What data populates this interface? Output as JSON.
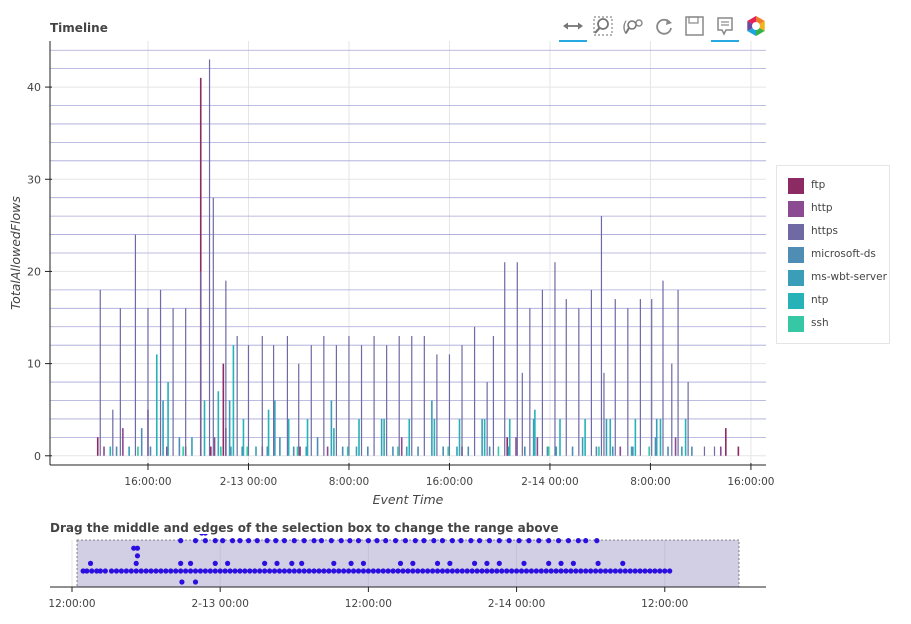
{
  "main": {
    "title": "Timeline",
    "ylabel": "TotalAllowedFlows",
    "xlabel": "Event Time"
  },
  "range": {
    "title": "Drag the middle and edges of the selection box to change the range above"
  },
  "toolbar": {
    "tools": [
      "pan-icon",
      "box-zoom-icon",
      "wheel-zoom-icon",
      "reset-icon",
      "save-icon",
      "hover-icon",
      "bokeh-logo-icon"
    ]
  },
  "colors": {
    "ftp": "#8c2a64",
    "http": "#8b4a92",
    "https": "#6f6aa3",
    "microsoft-ds": "#4f8db4",
    "ms-wbt-server": "#3a9eb8",
    "ntp": "#26b2b6",
    "ssh": "#36c8a4",
    "range_dots": "#2b0fe0",
    "selection": "#9c92c4"
  },
  "chart_data": [
    {
      "type": "bar",
      "title": "Timeline",
      "xlabel": "Event Time",
      "ylabel": "TotalAllowedFlows",
      "x_ticks": [
        "16:00:00",
        "2-13 00:00",
        "8:00:00",
        "16:00:00",
        "2-14 00:00",
        "8:00:00",
        "16:00:00"
      ],
      "x_tick_hours": [
        16,
        24,
        32,
        40,
        48,
        56,
        64
      ],
      "y_ticks": [
        0,
        10,
        20,
        30,
        40
      ],
      "ylim": [
        -1,
        45
      ],
      "xlim_hours": [
        8.2,
        65.2
      ],
      "legend": [
        "ftp",
        "http",
        "https",
        "microsoft-ds",
        "ms-wbt-server",
        "ntp",
        "ssh"
      ],
      "legend_position": "right",
      "grid": true,
      "series": [
        {
          "name": "ftp",
          "points": [
            [
              12.0,
              2
            ],
            [
              20.2,
              41
            ],
            [
              21.0,
              1
            ],
            [
              22.0,
              10
            ],
            [
              28.1,
              1
            ],
            [
              41.0,
              1
            ],
            [
              44.6,
              2
            ],
            [
              62.0,
              3
            ],
            [
              63.0,
              1
            ]
          ]
        },
        {
          "name": "http",
          "points": [
            [
              12.5,
              1
            ],
            [
              14.0,
              3
            ],
            [
              16.0,
              5
            ],
            [
              17.5,
              1
            ],
            [
              19.0,
              1
            ],
            [
              21.3,
              2
            ],
            [
              22.2,
              3
            ],
            [
              25.1,
              1
            ],
            [
              30.3,
              1
            ],
            [
              36.2,
              2
            ],
            [
              45.3,
              2
            ],
            [
              47.0,
              2
            ],
            [
              53.6,
              1
            ],
            [
              58.0,
              2
            ],
            [
              61.6,
              1
            ]
          ]
        },
        {
          "name": "https",
          "points": [
            [
              12.2,
              18
            ],
            [
              13.2,
              5
            ],
            [
              13.8,
              16
            ],
            [
              15.0,
              24
            ],
            [
              16.0,
              16
            ],
            [
              17.0,
              18
            ],
            [
              18.0,
              16
            ],
            [
              19.0,
              16
            ],
            [
              20.2,
              20
            ],
            [
              20.9,
              43
            ],
            [
              21.2,
              28
            ],
            [
              22.2,
              19
            ],
            [
              23.1,
              13
            ],
            [
              24.0,
              12
            ],
            [
              25.1,
              13
            ],
            [
              26.0,
              12
            ],
            [
              27.1,
              13
            ],
            [
              28.0,
              10
            ],
            [
              29.0,
              12
            ],
            [
              30.0,
              13
            ],
            [
              31.0,
              12
            ],
            [
              32.0,
              13
            ],
            [
              33.0,
              12
            ],
            [
              34.0,
              13
            ],
            [
              35.0,
              12
            ],
            [
              36.0,
              13
            ],
            [
              37.0,
              13
            ],
            [
              38.0,
              13
            ],
            [
              39.0,
              11
            ],
            [
              40.0,
              11
            ],
            [
              41.0,
              12
            ],
            [
              42.0,
              14
            ],
            [
              43.0,
              8
            ],
            [
              43.5,
              13
            ],
            [
              44.4,
              21
            ],
            [
              45.4,
              21
            ],
            [
              45.8,
              9
            ],
            [
              46.4,
              16
            ],
            [
              47.4,
              18
            ],
            [
              48.4,
              21
            ],
            [
              49.3,
              17
            ],
            [
              50.3,
              16
            ],
            [
              51.3,
              18
            ],
            [
              52.1,
              26
            ],
            [
              52.3,
              9
            ],
            [
              53.2,
              17
            ],
            [
              54.2,
              16
            ],
            [
              55.2,
              17
            ],
            [
              56.1,
              17
            ],
            [
              57.0,
              19
            ],
            [
              57.7,
              10
            ],
            [
              58.2,
              18
            ],
            [
              59.0,
              8
            ],
            [
              60.3,
              1
            ],
            [
              61.1,
              1
            ]
          ]
        },
        {
          "name": "microsoft-ds",
          "points": [
            [
              13.5,
              1
            ],
            [
              15.5,
              3
            ],
            [
              16.2,
              1
            ],
            [
              18.5,
              2
            ],
            [
              22.6,
              1
            ],
            [
              23.5,
              1
            ],
            [
              25.5,
              1
            ],
            [
              26.5,
              2
            ],
            [
              27.6,
              1
            ],
            [
              29.5,
              2
            ],
            [
              31.5,
              1
            ],
            [
              33.5,
              1
            ],
            [
              35.5,
              1
            ],
            [
              37.5,
              1
            ],
            [
              39.5,
              1
            ],
            [
              41.5,
              1
            ],
            [
              43.2,
              1
            ],
            [
              46.0,
              1
            ],
            [
              47.8,
              1
            ],
            [
              49.8,
              1
            ],
            [
              51.7,
              1
            ],
            [
              53.0,
              1
            ],
            [
              54.6,
              1
            ],
            [
              56.4,
              2
            ],
            [
              57.4,
              1
            ],
            [
              59.3,
              1
            ]
          ]
        },
        {
          "name": "ms-wbt-server",
          "points": [
            [
              14.5,
              1
            ],
            [
              17.2,
              6
            ],
            [
              19.5,
              2
            ],
            [
              22.5,
              6
            ],
            [
              24.6,
              1
            ],
            [
              26.1,
              6
            ],
            [
              28.6,
              1
            ],
            [
              30.6,
              6
            ],
            [
              32.6,
              1
            ],
            [
              34.6,
              4
            ],
            [
              36.6,
              1
            ],
            [
              38.6,
              6
            ],
            [
              40.6,
              1
            ],
            [
              42.6,
              4
            ],
            [
              44.7,
              1
            ],
            [
              46.7,
              4
            ],
            [
              48.5,
              1
            ],
            [
              50.6,
              2
            ],
            [
              52.5,
              4
            ],
            [
              54.5,
              1
            ],
            [
              56.5,
              4
            ],
            [
              58.5,
              1
            ]
          ]
        },
        {
          "name": "ntp",
          "points": [
            [
              13.0,
              1
            ],
            [
              16.7,
              11
            ],
            [
              17.6,
              8
            ],
            [
              20.5,
              6
            ],
            [
              21.6,
              7
            ],
            [
              22.8,
              12
            ],
            [
              23.6,
              4
            ],
            [
              25.6,
              5
            ],
            [
              27.2,
              4
            ],
            [
              28.7,
              4
            ],
            [
              30.8,
              3
            ],
            [
              32.8,
              4
            ],
            [
              34.8,
              4
            ],
            [
              36.8,
              4
            ],
            [
              38.8,
              4
            ],
            [
              40.8,
              4
            ],
            [
              42.8,
              4
            ],
            [
              44.8,
              4
            ],
            [
              46.8,
              5
            ],
            [
              48.8,
              4
            ],
            [
              50.8,
              4
            ],
            [
              52.8,
              4
            ],
            [
              54.8,
              4
            ],
            [
              56.8,
              4
            ],
            [
              58.8,
              4
            ]
          ]
        },
        {
          "name": "ssh",
          "points": [
            [
              15.2,
              1
            ],
            [
              18.8,
              1
            ],
            [
              21.8,
              1
            ],
            [
              23.9,
              1
            ],
            [
              27.9,
              1
            ],
            [
              31.9,
              1
            ],
            [
              35.9,
              1
            ],
            [
              39.9,
              1
            ],
            [
              43.9,
              1
            ],
            [
              47.9,
              1
            ],
            [
              51.9,
              1
            ],
            [
              55.9,
              1
            ]
          ]
        }
      ]
    },
    {
      "type": "scatter",
      "title": "Drag the middle and edges of the selection box to change the range above",
      "x_ticks": [
        "12:00:00",
        "2-13 00:00",
        "12:00:00",
        "2-14 00:00",
        "12:00:00"
      ],
      "x_tick_hours": [
        12,
        24,
        36,
        48,
        60
      ],
      "xlim_hours": [
        12.0,
        66.5
      ],
      "selection_hours": [
        8.2,
        65.2
      ],
      "rows": [
        {
          "level": 0,
          "hours": [
            12.9,
            13.2,
            13.6,
            14.0,
            14.3,
            14.7,
            15.2,
            15.6,
            16.0,
            16.4,
            16.8,
            17.2,
            17.6,
            18.0,
            18.4,
            18.8,
            19.2,
            19.6,
            20.0,
            20.4,
            20.8,
            21.2,
            21.6,
            22.0,
            22.4,
            22.8,
            23.2,
            23.6,
            24.0,
            24.4,
            24.8,
            25.2,
            25.6,
            26.0,
            26.4,
            26.8,
            27.2,
            27.6,
            28.0,
            28.4,
            28.8,
            29.2,
            29.6,
            30.0,
            30.4,
            30.8,
            31.2,
            31.6,
            32.0,
            32.4,
            32.8,
            33.2,
            33.6,
            34.0,
            34.4,
            34.8,
            35.2,
            35.6,
            36.0,
            36.4,
            36.8,
            37.2,
            37.6,
            38.0,
            38.4,
            38.8,
            39.2,
            39.6,
            40.0,
            40.4,
            40.8,
            41.2,
            41.6,
            42.0,
            42.4,
            42.8,
            43.2,
            43.6,
            44.0,
            44.4,
            44.8,
            45.2,
            45.6,
            46.0,
            46.4,
            46.8,
            47.2,
            47.6,
            48.0,
            48.4,
            48.8,
            49.2,
            49.6,
            50.0,
            50.4,
            50.8,
            51.2,
            51.6,
            52.0,
            52.4,
            52.8,
            53.2,
            53.6,
            54.0,
            54.4,
            54.8,
            55.2,
            55.6,
            56.0,
            56.4,
            56.8,
            57.2,
            57.6,
            58.0,
            58.4,
            58.8,
            59.2,
            59.6,
            60.0,
            60.4
          ]
        },
        {
          "level": 1,
          "hours": [
            13.5,
            17.2,
            20.8,
            21.6,
            23.6,
            24.6,
            27.6,
            28.6,
            29.8,
            30.6,
            33.2,
            34.6,
            35.6,
            38.6,
            39.6,
            41.6,
            42.6,
            44.6,
            45.6,
            46.6,
            48.6,
            50.6,
            51.6,
            52.6,
            54.6,
            56.6
          ]
        },
        {
          "level": 2,
          "hours": [
            17.3
          ]
        },
        {
          "level": 3,
          "hours": [
            17.0,
            17.3
          ]
        },
        {
          "level": 4,
          "hours": [
            20.8,
            22.0,
            22.8,
            23.6,
            24.2,
            25.0,
            25.6,
            26.3,
            27.0,
            27.8,
            28.5,
            29.2,
            30.0,
            30.8,
            31.6,
            32.2,
            33.0,
            33.8,
            34.5,
            35.2,
            36.0,
            36.7,
            37.4,
            38.2,
            39.0,
            39.8,
            40.5,
            41.3,
            42.0,
            42.8,
            43.5,
            44.3,
            45.0,
            45.8,
            46.6,
            47.4,
            48.2,
            49.0,
            49.8,
            50.6,
            51.4,
            52.2,
            53.0,
            53.6,
            54.5
          ]
        },
        {
          "level": 5,
          "hours": [
            22.5,
            22.8
          ]
        }
      ],
      "low_hours": [
        20.9,
        22.0
      ]
    }
  ]
}
